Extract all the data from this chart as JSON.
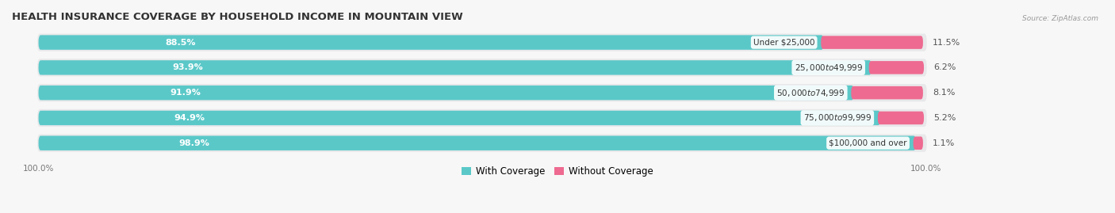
{
  "title": "HEALTH INSURANCE COVERAGE BY HOUSEHOLD INCOME IN MOUNTAIN VIEW",
  "source": "Source: ZipAtlas.com",
  "categories": [
    "Under $25,000",
    "$25,000 to $49,999",
    "$50,000 to $74,999",
    "$75,000 to $99,999",
    "$100,000 and over"
  ],
  "with_coverage": [
    88.5,
    93.9,
    91.9,
    94.9,
    98.9
  ],
  "without_coverage": [
    11.5,
    6.2,
    8.1,
    5.2,
    1.1
  ],
  "color_with": "#5bc8c8",
  "color_without": "#ee6a90",
  "bg_bar_color": "#e8e8ea",
  "bg_color": "#f7f7f7",
  "title_fontsize": 9.5,
  "label_fontsize": 8,
  "tick_fontsize": 7.5,
  "legend_fontsize": 8.5,
  "x_left_label": "100.0%",
  "x_right_label": "100.0%"
}
